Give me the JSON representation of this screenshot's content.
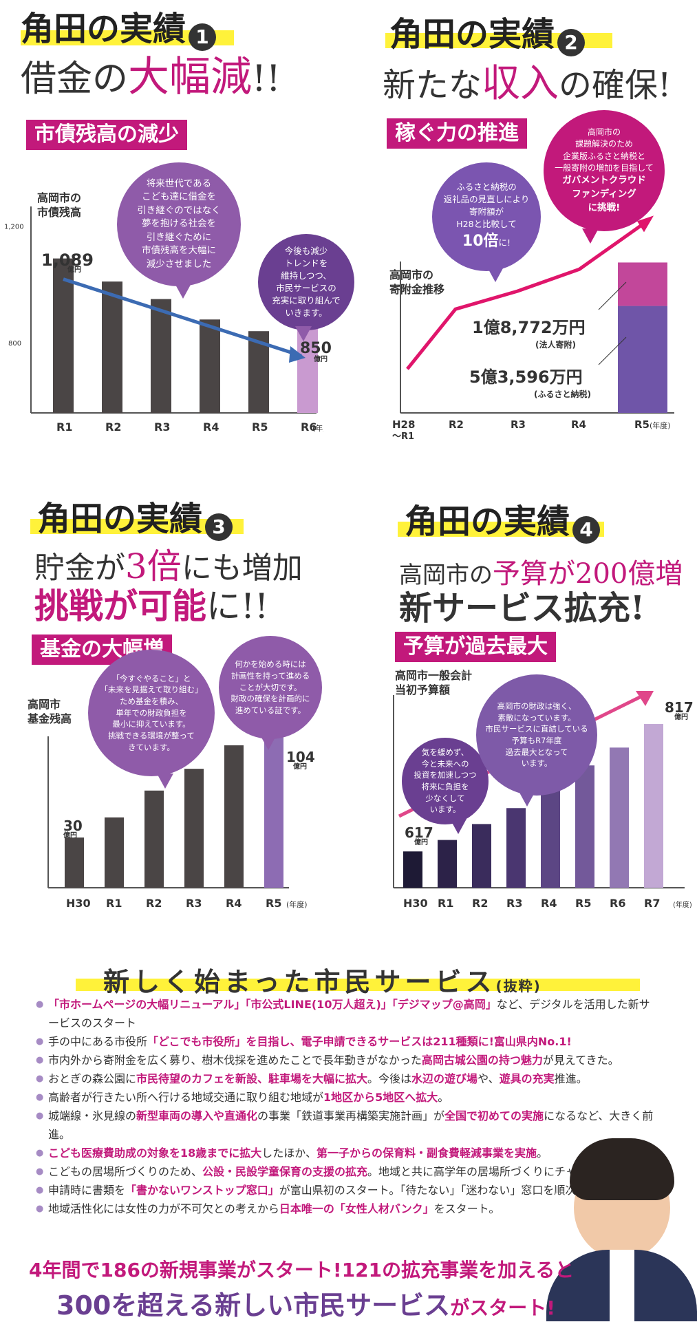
{
  "section1": {
    "head_a": "角田の実績",
    "head_no": "1",
    "title_a": "借金の",
    "title_b": "大幅減",
    "title_c": "!!",
    "tag": "市債残高の減少",
    "chart_title": "高岡市の\n市債残高",
    "bubble_big": "将来世代である\nこども達に借金を\n引き継ぐのではなく\n夢を抱ける社会を\n引き継ぐために\n市債残高を大幅に\n減少させました",
    "bubble_small": "今後も減少\nトレンドを\n維持しつつ、\n市民サービスの\n充実に取り組んで\nいきます。",
    "first_value": "1,089",
    "last_value": "850",
    "unit": "億円",
    "year_unit": "(年度)"
  },
  "section2": {
    "head_a": "角田の実績",
    "head_no": "2",
    "title_a": "新たな",
    "title_b": "収入",
    "title_c": "の確保!",
    "tag": "稼ぐ力の推進",
    "chart_title": "高岡市の\n寄附金推移",
    "bubble_a": "ふるさと納税の\n返礼品の見直しにより\n寄附額が\nH28と比較して",
    "bubble_a_big": "10倍",
    "bubble_a_tail": "に!",
    "bubble_b": "高岡市の\n課題解決のため\n企業版ふるさと納税と\n一般寄附の増加を目指して",
    "bubble_b_bold": "ガバメントクラウド\nファンディング\nに挑戦!",
    "corp_value": "1億8,772万円",
    "corp_label": "(法人寄附)",
    "furusato_value": "5億3,596万円",
    "furusato_label": "(ふるさと納税)",
    "year_unit": "(年度)"
  },
  "section3": {
    "head_a": "角田の実績",
    "head_no": "3",
    "title_a1": "貯金が",
    "title_a2": "3倍",
    "title_a3": "にも増加",
    "title_b1": "挑戦が可能",
    "title_b2": "に!!",
    "tag": "基金の大幅増",
    "chart_title": "高岡市\n基金残高",
    "bubble_a": "「今すぐやること」と\n「未来を見据えて取り組む」\nため基金を積み、\n単年での財政負担を\n最小に抑えています。\n挑戦できる環境が整って\nきています。",
    "bubble_b": "何かを始める時には\n計画性を持って進める\nことが大切です。\n財政の確保を計画的に\n進めている証です。",
    "first_value": "30",
    "last_value": "104",
    "unit": "億円",
    "year_unit": "(年度)"
  },
  "section4": {
    "head_a": "角田の実績",
    "head_no": "4",
    "title_a1": "高岡市の",
    "title_a2": "予算が200億増",
    "title_b": "新サービス拡充!",
    "tag": "予算が過去最大",
    "chart_title": "高岡市一般会計\n当初予算額",
    "bubble_a": "気を緩めず、\n今と未来への\n投資を加速しつつ\n将来に負担を\n少なくして\nいます。",
    "bubble_b": "高岡市の財政は強く、\n素敵になっています。\n市民サービスに直結している\n予算もR7年度\n過去最大となって\nいます。",
    "first_value": "617",
    "last_value": "817",
    "unit": "億円",
    "year_unit": "(年度)"
  },
  "chart_data": [
    {
      "type": "bar",
      "title": "高岡市の市債残高",
      "categories": [
        "R1",
        "R2",
        "R3",
        "R4",
        "R5",
        "R6"
      ],
      "values": [
        1089,
        1010,
        950,
        880,
        840,
        850
      ],
      "ylabel": "億円",
      "yticks": [
        "1,200",
        "800"
      ],
      "ylim": [
        560,
        1220
      ]
    },
    {
      "type": "line",
      "title": "高岡市の寄附金推移",
      "categories": [
        "H28〜R1",
        "R2",
        "R3",
        "R4",
        "R5"
      ],
      "values": [
        2.2,
        5.2,
        6.1,
        7.2,
        9.4
      ],
      "ylabel": "億円",
      "stack_R5": [
        {
          "name": "ふるさと納税",
          "value": 5.3596
        },
        {
          "name": "法人寄附",
          "value": 1.8772
        }
      ]
    },
    {
      "type": "bar",
      "title": "高岡市基金残高",
      "categories": [
        "H30",
        "R1",
        "R2",
        "R3",
        "R4",
        "R5"
      ],
      "values": [
        30,
        42,
        58,
        71,
        85,
        104
      ],
      "ylabel": "億円",
      "ylim": [
        0,
        115
      ]
    },
    {
      "type": "bar",
      "title": "高岡市一般会計当初予算額",
      "categories": [
        "H30",
        "R1",
        "R2",
        "R3",
        "R4",
        "R5",
        "R6",
        "R7"
      ],
      "values": [
        617,
        635,
        660,
        685,
        720,
        752,
        780,
        817
      ],
      "ylabel": "億円",
      "ylim": [
        560,
        830
      ]
    }
  ],
  "services": {
    "title": "新しく始まった市民サービス",
    "title_sub": "(抜粋)",
    "items": [
      {
        "parts": [
          [
            "m",
            "「市ホームページの大幅リニューアル」「市公式LINE(10万人超え)」「デジマップ@高岡」"
          ],
          [
            "n",
            "など、"
          ],
          [
            "n",
            "デジタルを活用した新サービスのスタート"
          ]
        ]
      },
      {
        "parts": [
          [
            "n",
            "手の中にある市役所"
          ],
          [
            "m",
            "「どこでも市役所」を目指し、電子申請できるサービスは211種類に!富山県内No.1!"
          ]
        ]
      },
      {
        "parts": [
          [
            "n",
            "市内外から寄附金を広く募り、樹木伐採を進めたことで長年動きがなかった"
          ],
          [
            "m",
            "高岡古城公園の持つ魅力"
          ],
          [
            "n",
            "が見えてきた。"
          ]
        ]
      },
      {
        "parts": [
          [
            "n",
            "おとぎの森公園に"
          ],
          [
            "m",
            "市民待望のカフェを新設、駐車場を大幅に拡大"
          ],
          [
            "n",
            "。今後は"
          ],
          [
            "m",
            "水辺の遊び場"
          ],
          [
            "n",
            "や、"
          ],
          [
            "m",
            "遊具の充実"
          ],
          [
            "n",
            "推進。"
          ]
        ]
      },
      {
        "parts": [
          [
            "n",
            "高齢者が行きたい所へ行ける地域交通に取り組む地域が"
          ],
          [
            "m",
            "1地区から5地区へ拡大"
          ],
          [
            "n",
            "。"
          ]
        ]
      },
      {
        "parts": [
          [
            "n",
            "城端線・氷見線の"
          ],
          [
            "m",
            "新型車両の導入や直通化"
          ],
          [
            "n",
            "の事業「鉄道事業再構築実施計画」が"
          ],
          [
            "m",
            "全国で初めての実施"
          ],
          [
            "n",
            "になるなど、大きく前進。"
          ]
        ]
      },
      {
        "parts": [
          [
            "m",
            "こども医療費助成の対象を18歳までに拡大"
          ],
          [
            "n",
            "したほか、"
          ],
          [
            "m",
            "第一子からの保育料・副食費軽減事業を実施"
          ],
          [
            "n",
            "。"
          ]
        ]
      },
      {
        "parts": [
          [
            "n",
            "こどもの居場所づくりのため、"
          ],
          [
            "m",
            "公設・民設学童保育の支援の拡充"
          ],
          [
            "n",
            "。地域と共に高学年の居場所づくりにチャレンジ中。"
          ]
        ]
      },
      {
        "parts": [
          [
            "n",
            "申請時に書類を"
          ],
          [
            "m",
            "「書かないワンストップ窓口」"
          ],
          [
            "n",
            "が富山県初のスタート。「待たない」「迷わない」窓口を順次スタート。"
          ]
        ]
      },
      {
        "parts": [
          [
            "n",
            "地域活性化には女性の力が不可欠との考えから"
          ],
          [
            "m",
            "日本唯一の「女性人材バンク」"
          ],
          [
            "n",
            "をスタート。"
          ]
        ]
      }
    ]
  },
  "bottom": {
    "line1": "4年間で186の新規事業がスタート!121の拡充事業を加えると",
    "line2": "300を超える新しい市民サービス",
    "line2_tail": "がスタート!"
  },
  "colors": {
    "magenta": "#c2197b",
    "purple": "#6a3f91",
    "bar_dark": "#4a4545",
    "highlight": "#fff23a"
  }
}
